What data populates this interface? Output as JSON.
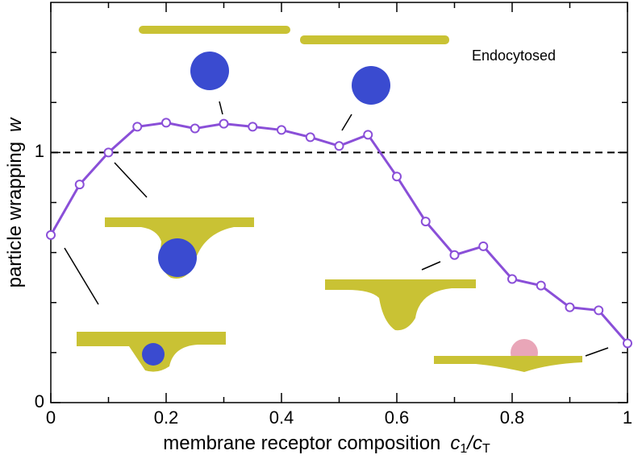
{
  "chart_data": {
    "type": "line",
    "xlabel": "membrane receptor composition",
    "xlabel_symbol": [
      "c",
      "1",
      "/c",
      "T"
    ],
    "ylabel": "particle wrapping",
    "ylabel_symbol": "w",
    "annotation": "Endocytosed",
    "x": [
      0,
      0.05,
      0.1,
      0.15,
      0.2,
      0.25,
      0.3,
      0.35,
      0.4,
      0.45,
      0.5,
      0.55,
      0.6,
      0.65,
      0.7,
      0.75,
      0.8,
      0.85,
      0.9,
      0.95,
      1.0
    ],
    "series": [
      {
        "color": "#8a4fd8",
        "values": [
          0.67,
          0.872,
          1.0,
          1.103,
          1.119,
          1.096,
          1.115,
          1.103,
          1.09,
          1.061,
          1.026,
          1.071,
          0.904,
          0.724,
          0.59,
          0.625,
          0.494,
          0.468,
          0.381,
          0.369,
          0.237
        ]
      }
    ],
    "xlim": [
      0,
      1
    ],
    "ylim": [
      0,
      1.6
    ],
    "xticks": [
      0,
      0.2,
      0.4,
      0.6,
      0.8,
      1
    ],
    "xminorticks": [
      0.1,
      0.3,
      0.5,
      0.7,
      0.9
    ],
    "yticks": [
      0,
      1
    ],
    "yminorticks": [
      0.2,
      0.4,
      0.6,
      0.8,
      1.2,
      1.4
    ],
    "reference_line": 1
  }
}
